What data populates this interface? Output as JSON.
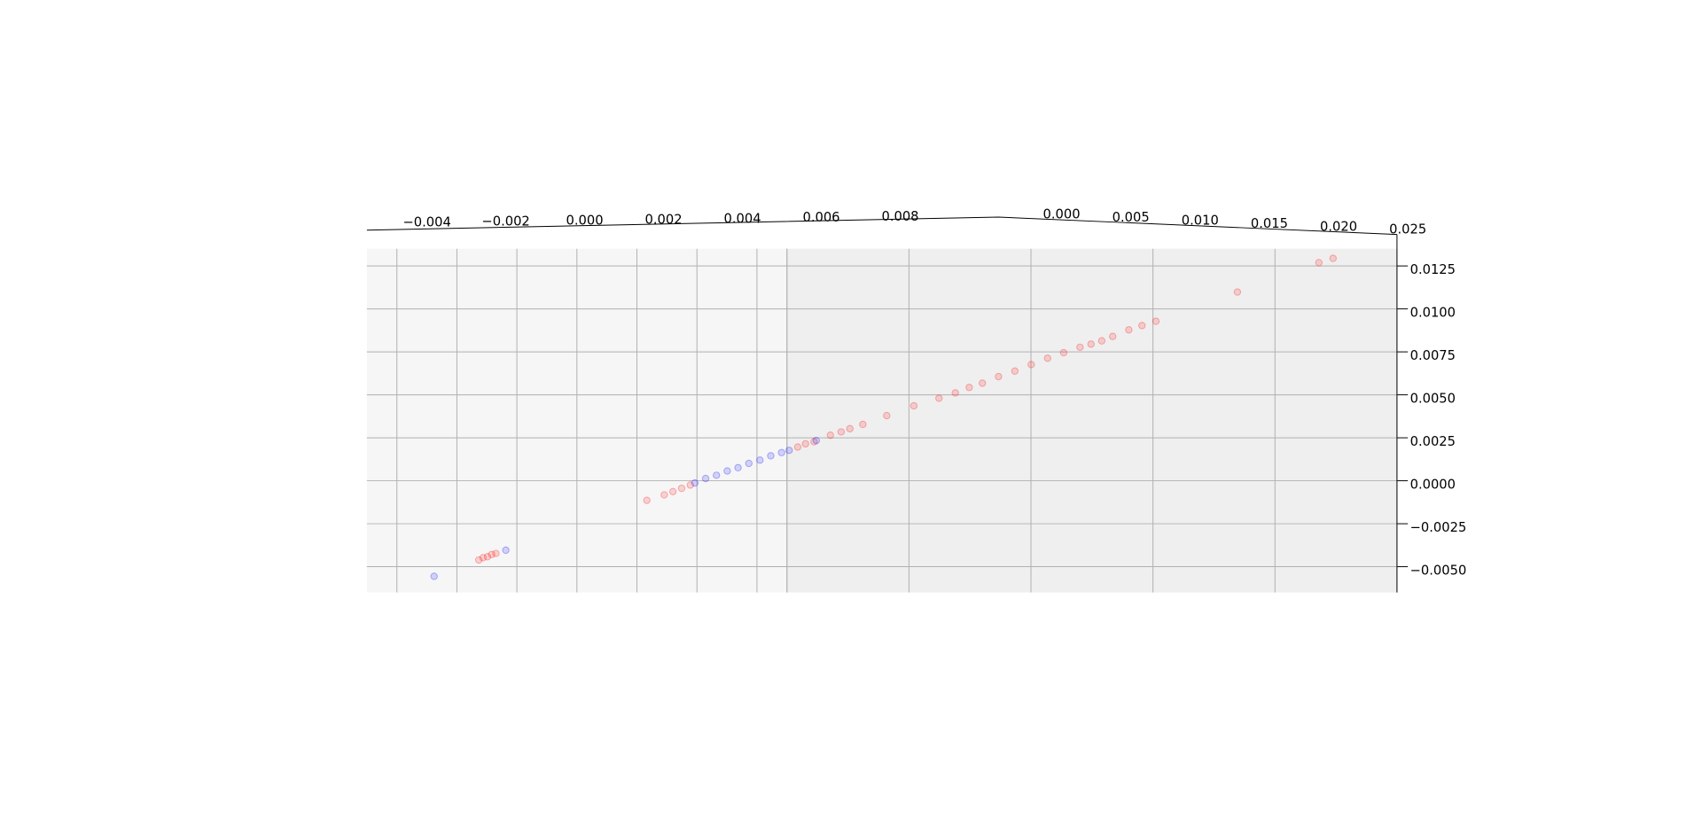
{
  "chart_data": {
    "type": "scatter3d",
    "xlim": [
      -0.005,
      0.009
    ],
    "ylim": [
      0,
      0.025
    ],
    "zlim": [
      -0.0065,
      0.0135
    ],
    "xticks": [
      {
        "value": -0.004,
        "label": "−0.004"
      },
      {
        "value": -0.002,
        "label": "−0.002"
      },
      {
        "value": 0,
        "label": "0.000"
      },
      {
        "value": 0.002,
        "label": "0.002"
      },
      {
        "value": 0.004,
        "label": "0.004"
      },
      {
        "value": 0.006,
        "label": "0.006"
      },
      {
        "value": 0.008,
        "label": "0.008"
      }
    ],
    "yticks": [
      {
        "value": 0,
        "label": "0.000"
      },
      {
        "value": 0.005,
        "label": "0.005"
      },
      {
        "value": 0.01,
        "label": "0.010"
      },
      {
        "value": 0.015,
        "label": "0.015"
      },
      {
        "value": 0.02,
        "label": "0.020"
      },
      {
        "value": 0.025,
        "label": "0.025"
      }
    ],
    "zticks": [
      {
        "value": -0.005,
        "label": "−0.0050"
      },
      {
        "value": -0.0025,
        "label": "−0.0025"
      },
      {
        "value": 0,
        "label": "0.0000"
      },
      {
        "value": 0.0025,
        "label": "0.0025"
      },
      {
        "value": 0.005,
        "label": "0.0050"
      },
      {
        "value": 0.0075,
        "label": "0.0075"
      },
      {
        "value": 0.01,
        "label": "0.0100"
      },
      {
        "value": 0.0125,
        "label": "0.0125"
      }
    ],
    "grid": true,
    "series": [
      {
        "color": "#ff0000",
        "x": [
          -0.00127,
          -0.00113,
          -0.00098,
          -0.00084,
          -0.0007,
          0.00433,
          0.00491,
          0.0052,
          0.00549,
          0.00578,
          0.009,
          0.009,
          0.009,
          0.009,
          0.009,
          0.009,
          0.009,
          0.009,
          0.009,
          0.009,
          0.009,
          0.009,
          0.009,
          0.009,
          0.009,
          0.009,
          0.009,
          0.009,
          0.009,
          0.009,
          0.009,
          0.009,
          0.009,
          0.009,
          0.009,
          0.009,
          0.009,
          0.009
        ],
        "y": [
          0,
          0,
          0,
          0,
          0,
          0,
          0,
          0,
          0,
          0,
          0.00044,
          0.00076,
          0.00111,
          0.00178,
          0.00222,
          0.00258,
          0.00311,
          0.00409,
          0.0052,
          0.00623,
          0.0069,
          0.00747,
          0.00801,
          0.00867,
          0.00934,
          0.01001,
          0.01068,
          0.01134,
          0.01201,
          0.01246,
          0.0129,
          0.01335,
          0.01401,
          0.01455,
          0.01512,
          0.01846,
          0.0218,
          0.02238
        ],
        "z": [
          -0.00461,
          -0.00448,
          -0.00442,
          -0.00429,
          -0.00423,
          -0.00114,
          -0.00082,
          -0.00063,
          -0.00044,
          -0.00025,
          0.00196,
          0.00215,
          0.00227,
          0.00265,
          0.00284,
          0.00303,
          0.00328,
          0.00379,
          0.00436,
          0.0048,
          0.00511,
          0.00543,
          0.00568,
          0.00606,
          0.00638,
          0.00676,
          0.00713,
          0.00745,
          0.00777,
          0.00795,
          0.00814,
          0.0084,
          0.00878,
          0.00903,
          0.00928,
          0.01098,
          0.01269,
          0.01294
        ]
      },
      {
        "color": "#0000ff",
        "x": [
          -0.00276,
          -0.00037,
          0.00593,
          0.00629,
          0.00665,
          0.00701,
          0.00737,
          0.00773,
          0.0081,
          0.00846,
          0.00882,
          0.009,
          0.009
        ],
        "y": [
          0,
          0,
          0,
          0,
          0,
          0,
          0,
          0,
          0,
          0,
          0,
          9e-05,
          0.0012
        ],
        "z": [
          -0.00556,
          -0.00404,
          -0.00013,
          0.00013,
          0.00032,
          0.00057,
          0.00076,
          0.00101,
          0.0012,
          0.00145,
          0.00164,
          0.00177,
          0.00234
        ]
      }
    ]
  }
}
